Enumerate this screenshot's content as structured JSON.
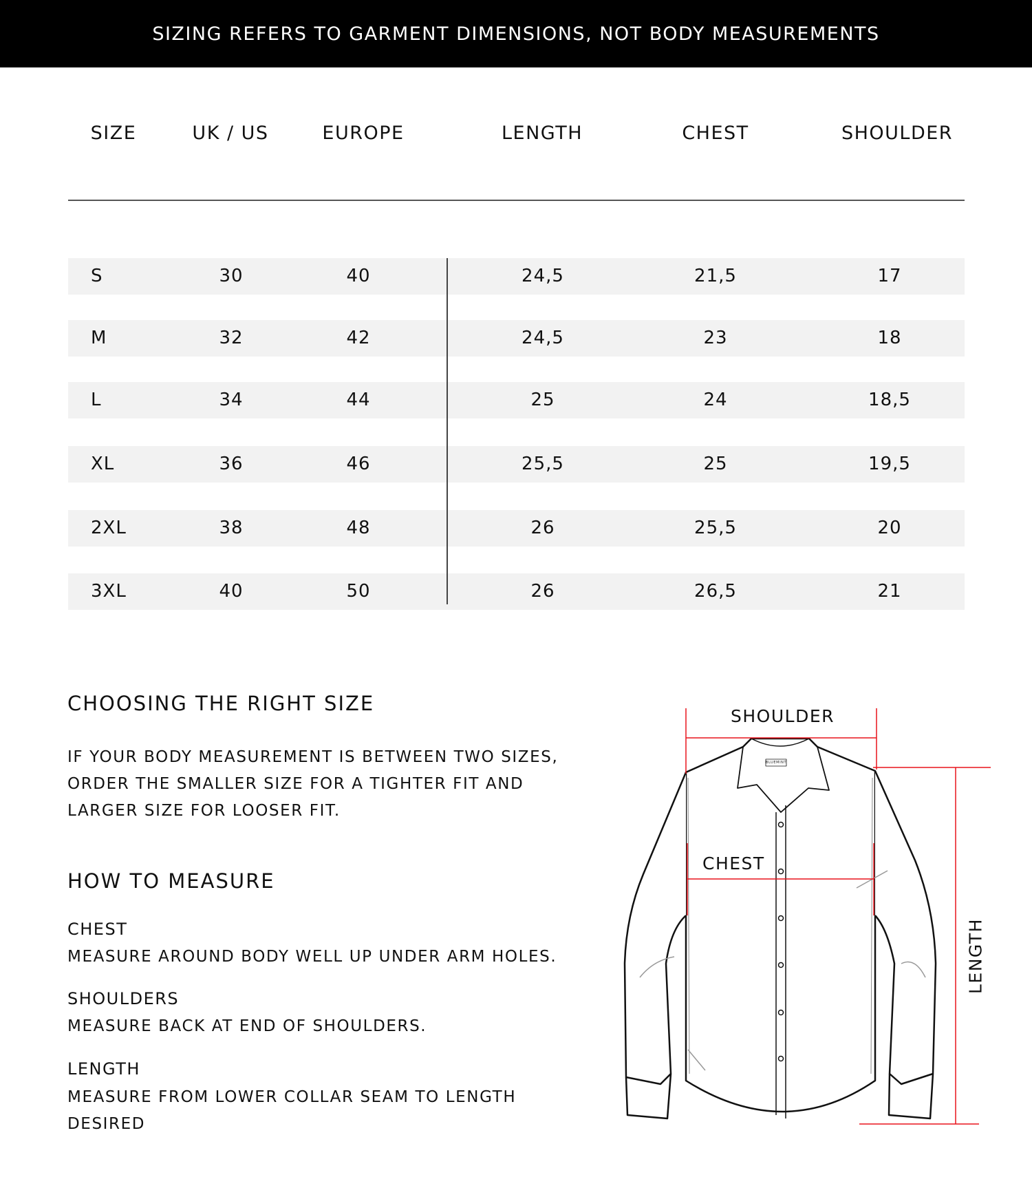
{
  "banner": "SIZING REFERS TO GARMENT DIMENSIONS, NOT BODY MEASUREMENTS",
  "table": {
    "headers": [
      "SIZE",
      "UK / US",
      "EUROPE",
      "LENGTH",
      "CHEST",
      "SHOULDER"
    ],
    "rows": [
      [
        "S",
        "30",
        "40",
        "24,5",
        "21,5",
        "17"
      ],
      [
        "M",
        "32",
        "42",
        "24,5",
        "23",
        "18"
      ],
      [
        "L",
        "34",
        "44",
        "25",
        "24",
        "18,5"
      ],
      [
        "XL",
        "36",
        "46",
        "25,5",
        "25",
        "19,5"
      ],
      [
        "2XL",
        "38",
        "48",
        "26",
        "25,5",
        "20"
      ],
      [
        "3XL",
        "40",
        "50",
        "26",
        "26,5",
        "21"
      ]
    ]
  },
  "choosing": {
    "title": "CHOOSING THE RIGHT SIZE",
    "lines": [
      "IF YOUR BODY MEASUREMENT IS BETWEEN TWO SIZES,",
      "ORDER THE SMALLER SIZE FOR A TIGHTER FIT AND",
      "LARGER SIZE FOR LOOSER FIT."
    ]
  },
  "measure": {
    "title": "HOW TO MEASURE",
    "chest_title": "CHEST",
    "chest_text": "MEASURE AROUND BODY WELL UP UNDER ARM HOLES.",
    "shoulders_title": "SHOULDERS",
    "shoulders_text": "MEASURE BACK AT END OF SHOULDERS.",
    "length_title": "LENGTH",
    "length_lines": [
      "MEASURE FROM LOWER COLLAR SEAM TO LENGTH",
      "DESIRED"
    ]
  },
  "diagram": {
    "shoulder_label": "SHOULDER",
    "chest_label": "CHEST",
    "length_label": "LENGTH",
    "brand_tag": "BLUEMINT",
    "line_color": "#e8141b"
  }
}
